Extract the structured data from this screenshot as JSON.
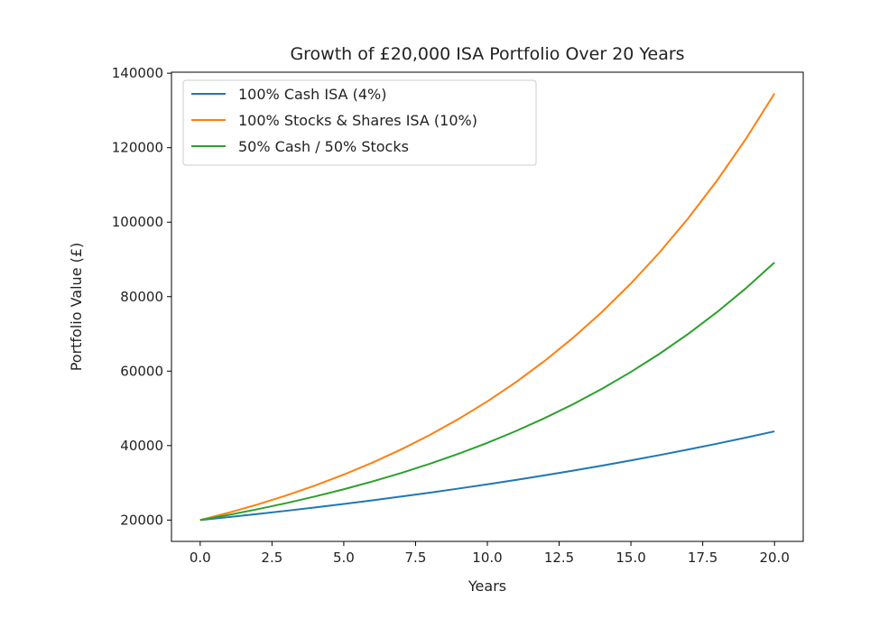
{
  "chart_data": {
    "type": "line",
    "title": "Growth of £20,000 ISA Portfolio Over 20 Years",
    "xlabel": "Years",
    "ylabel": "Portfolio Value (£)",
    "xlim": [
      -1,
      21
    ],
    "ylim": [
      14273,
      140277
    ],
    "xticks": [
      0,
      2.5,
      5,
      7.5,
      10,
      12.5,
      15,
      17.5,
      20
    ],
    "xtick_labels": [
      "0.0",
      "2.5",
      "5.0",
      "7.5",
      "10.0",
      "12.5",
      "15.0",
      "17.5",
      "20.0"
    ],
    "yticks": [
      20000,
      40000,
      60000,
      80000,
      100000,
      120000,
      140000
    ],
    "ytick_labels": [
      "20000",
      "40000",
      "60000",
      "80000",
      "100000",
      "120000",
      "140000"
    ],
    "grid": false,
    "legend_position": "top-left",
    "x": [
      0,
      1,
      2,
      3,
      4,
      5,
      6,
      7,
      8,
      9,
      10,
      11,
      12,
      13,
      14,
      15,
      16,
      17,
      18,
      19,
      20
    ],
    "series": [
      {
        "name": "100% Cash ISA (4%)",
        "color": "#1f77b4",
        "values": [
          20000,
          20800,
          21632,
          22497,
          23397,
          24333,
          25306,
          26319,
          27371,
          28466,
          29605,
          30789,
          32021,
          33301,
          34634,
          36019,
          37460,
          38958,
          40516,
          42137,
          43822
        ]
      },
      {
        "name": "100% Stocks & Shares ISA (10%)",
        "color": "#ff7f0e",
        "values": [
          20000,
          22000,
          24200,
          26620,
          29282,
          32210,
          35431,
          38974,
          42872,
          47159,
          51875,
          57062,
          62769,
          69045,
          75950,
          83545,
          91899,
          101089,
          111198,
          122318,
          134550
        ]
      },
      {
        "name": "50% Cash / 50% Stocks",
        "color": "#2ca02c",
        "values": [
          20000,
          21400,
          22916,
          24559,
          26340,
          28272,
          30369,
          32646,
          35122,
          37813,
          40740,
          43926,
          47395,
          51173,
          55292,
          59782,
          64680,
          70024,
          75857,
          82228,
          89186
        ]
      }
    ]
  }
}
